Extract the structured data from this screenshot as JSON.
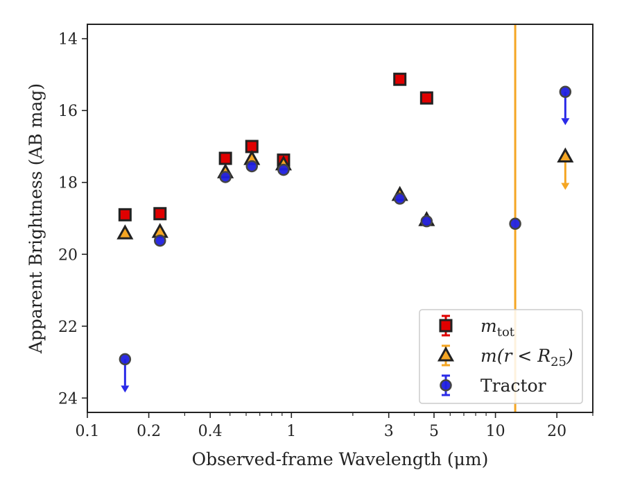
{
  "chart_data": {
    "type": "scatter",
    "title": "",
    "xlabel": "Observed-frame Wavelength (μm)",
    "ylabel": "Apparent Brightness (AB mag)",
    "x_scale": "log",
    "xlim": [
      0.1,
      30
    ],
    "ylim": [
      24.4,
      13.6
    ],
    "y_inverted": true,
    "x_ticks": [
      0.1,
      0.2,
      0.4,
      1,
      3,
      5,
      10,
      20
    ],
    "x_tick_labels": [
      "0.1",
      "0.2",
      "0.4",
      "1",
      "3",
      "5",
      "10",
      "20"
    ],
    "y_ticks": [
      14,
      16,
      18,
      20,
      22,
      24
    ],
    "y_tick_labels": [
      "14",
      "16",
      "18",
      "20",
      "22",
      "24"
    ],
    "grid": false,
    "legend_position": "lower-right",
    "vline": {
      "x": 12.5,
      "color": "#f5a623"
    },
    "series": [
      {
        "name": "m_tot",
        "legend_parts": {
          "base": "m",
          "sub": "tot"
        },
        "marker": "square",
        "face_color": "#e00000",
        "edge_color": "#222222",
        "errbar_color": "#e00000",
        "points": [
          {
            "x": 0.153,
            "y": 18.9
          },
          {
            "x": 0.227,
            "y": 18.87
          },
          {
            "x": 0.475,
            "y": 17.33
          },
          {
            "x": 0.64,
            "y": 17.0
          },
          {
            "x": 0.915,
            "y": 17.38
          },
          {
            "x": 3.4,
            "y": 15.13
          },
          {
            "x": 4.6,
            "y": 15.65
          }
        ]
      },
      {
        "name": "m(r < R25)",
        "legend_parts": {
          "base": "m(r < R",
          "sub": "25",
          "close": ")"
        },
        "marker": "triangle",
        "face_color": "#f5a623",
        "edge_color": "#222222",
        "errbar_color": "#f5a623",
        "points": [
          {
            "x": 0.153,
            "y": 19.42
          },
          {
            "x": 0.227,
            "y": 19.38
          },
          {
            "x": 0.475,
            "y": 17.72
          },
          {
            "x": 0.64,
            "y": 17.35
          },
          {
            "x": 0.915,
            "y": 17.5
          },
          {
            "x": 3.4,
            "y": 18.35
          },
          {
            "x": 4.6,
            "y": 19.05
          },
          {
            "x": 22.0,
            "y": 17.28,
            "upper_limit": true
          }
        ]
      },
      {
        "name": "Tractor",
        "marker": "circle",
        "face_color": "#1f1fe0",
        "edge_color": "#444444",
        "errbar_color": "#2a2ae8",
        "points": [
          {
            "x": 0.153,
            "y": 22.92,
            "upper_limit": true
          },
          {
            "x": 0.227,
            "y": 19.62
          },
          {
            "x": 0.475,
            "y": 17.85
          },
          {
            "x": 0.64,
            "y": 17.55
          },
          {
            "x": 0.915,
            "y": 17.65
          },
          {
            "x": 3.4,
            "y": 18.45
          },
          {
            "x": 4.6,
            "y": 19.08
          },
          {
            "x": 12.5,
            "y": 19.15
          },
          {
            "x": 22.0,
            "y": 15.48,
            "upper_limit": true
          }
        ]
      }
    ]
  }
}
